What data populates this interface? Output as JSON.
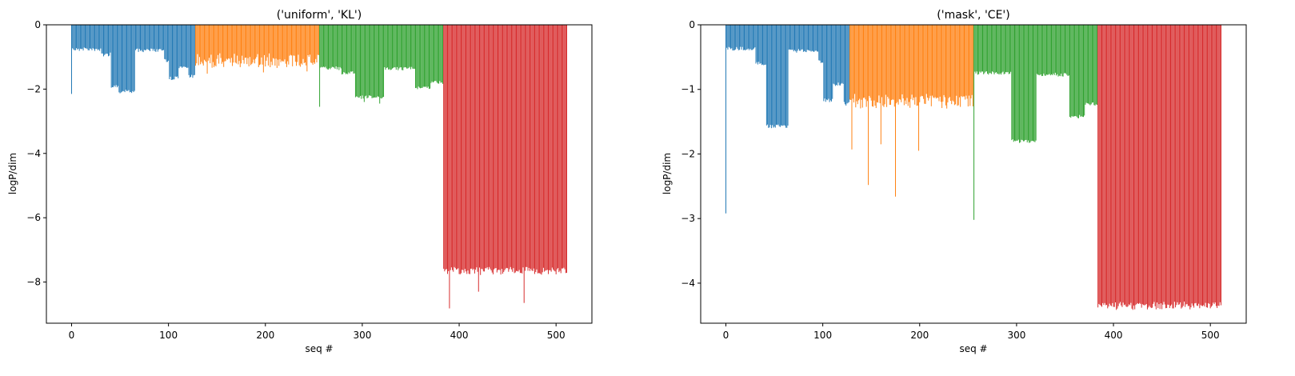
{
  "chart_data": [
    {
      "type": "bar",
      "title": "('uniform', 'KL')",
      "xlabel": "seq #",
      "ylabel": "logP/dim",
      "xlim": [
        -26,
        537
      ],
      "ylim": [
        -9.28,
        0
      ],
      "xticks": [
        0,
        100,
        200,
        300,
        400,
        500
      ],
      "yticks": [
        0,
        -2,
        -4,
        -6,
        -8
      ],
      "grid": false,
      "legend": "none",
      "n_bars": 512,
      "series": [
        {
          "color": "#1f77b4",
          "x_range": [
            0,
            127
          ],
          "segments": [
            {
              "x": [
                0,
                0
              ],
              "value": -2.15
            },
            {
              "x": [
                1,
                30
              ],
              "value": -0.72
            },
            {
              "x": [
                31,
                40
              ],
              "value": -0.88
            },
            {
              "x": [
                41,
                48
              ],
              "value": -1.88
            },
            {
              "x": [
                49,
                65
              ],
              "value": -2.02
            },
            {
              "x": [
                66,
                95
              ],
              "value": -0.75
            },
            {
              "x": [
                96,
                100
              ],
              "value": -1.05
            },
            {
              "x": [
                101,
                110
              ],
              "value": -1.62
            },
            {
              "x": [
                111,
                120
              ],
              "value": -1.25
            },
            {
              "x": [
                121,
                127
              ],
              "value": -1.55
            }
          ]
        },
        {
          "color": "#ff7f0e",
          "x_range": [
            128,
            255
          ],
          "segments": [
            {
              "x": [
                128,
                255
              ],
              "value": -0.95
            }
          ],
          "spikes": [
            {
              "x": 140,
              "value": -1.52
            },
            {
              "x": 198,
              "value": -1.48
            },
            {
              "x": 243,
              "value": -1.45
            }
          ]
        },
        {
          "color": "#2ca02c",
          "x_range": [
            256,
            383
          ],
          "segments": [
            {
              "x": [
                256,
                256
              ],
              "value": -2.55
            },
            {
              "x": [
                257,
                278
              ],
              "value": -1.3
            },
            {
              "x": [
                279,
                292
              ],
              "value": -1.45
            },
            {
              "x": [
                293,
                322
              ],
              "value": -2.2
            },
            {
              "x": [
                323,
                354
              ],
              "value": -1.32
            },
            {
              "x": [
                355,
                370
              ],
              "value": -1.9
            },
            {
              "x": [
                371,
                383
              ],
              "value": -1.75
            }
          ],
          "spikes": [
            {
              "x": 302,
              "value": -2.4
            },
            {
              "x": 318,
              "value": -2.45
            }
          ]
        },
        {
          "color": "#d62728",
          "x_range": [
            384,
            511
          ],
          "segments": [
            {
              "x": [
                384,
                511
              ],
              "value": -7.55
            }
          ],
          "spikes": [
            {
              "x": 390,
              "value": -8.82
            },
            {
              "x": 467,
              "value": -8.65
            },
            {
              "x": 420,
              "value": -8.3
            }
          ]
        }
      ]
    },
    {
      "type": "bar",
      "title": "('mask', 'CE')",
      "xlabel": "seq #",
      "ylabel": "logP/dim",
      "xlim": [
        -26,
        537
      ],
      "ylim": [
        -4.62,
        0
      ],
      "xticks": [
        0,
        100,
        200,
        300,
        400,
        500
      ],
      "yticks": [
        0,
        -1,
        -2,
        -3,
        -4
      ],
      "grid": false,
      "legend": "none",
      "n_bars": 512,
      "series": [
        {
          "color": "#1f77b4",
          "x_range": [
            0,
            127
          ],
          "segments": [
            {
              "x": [
                0,
                0
              ],
              "value": -2.92
            },
            {
              "x": [
                1,
                30
              ],
              "value": -0.35
            },
            {
              "x": [
                31,
                41
              ],
              "value": -0.58
            },
            {
              "x": [
                42,
                64
              ],
              "value": -1.55
            },
            {
              "x": [
                65,
                95
              ],
              "value": -0.38
            },
            {
              "x": [
                96,
                100
              ],
              "value": -0.55
            },
            {
              "x": [
                101,
                110
              ],
              "value": -1.15
            },
            {
              "x": [
                111,
                121
              ],
              "value": -0.9
            },
            {
              "x": [
                122,
                127
              ],
              "value": -1.2
            }
          ]
        },
        {
          "color": "#ff7f0e",
          "x_range": [
            128,
            255
          ],
          "segments": [
            {
              "x": [
                128,
                255
              ],
              "value": -1.1
            }
          ],
          "spikes": [
            {
              "x": 130,
              "value": -1.93
            },
            {
              "x": 147,
              "value": -2.48
            },
            {
              "x": 175,
              "value": -2.66
            },
            {
              "x": 199,
              "value": -1.95
            },
            {
              "x": 160,
              "value": -1.85
            }
          ]
        },
        {
          "color": "#2ca02c",
          "x_range": [
            256,
            383
          ],
          "segments": [
            {
              "x": [
                256,
                256
              ],
              "value": -3.02
            },
            {
              "x": [
                257,
                294
              ],
              "value": -0.72
            },
            {
              "x": [
                295,
                320
              ],
              "value": -1.78
            },
            {
              "x": [
                321,
                354
              ],
              "value": -0.75
            },
            {
              "x": [
                355,
                370
              ],
              "value": -1.4
            },
            {
              "x": [
                371,
                383
              ],
              "value": -1.2
            }
          ]
        },
        {
          "color": "#d62728",
          "x_range": [
            384,
            511
          ],
          "segments": [
            {
              "x": [
                384,
                511
              ],
              "value": -4.3
            }
          ],
          "spikes": [
            {
              "x": 448,
              "value": -4.4
            },
            {
              "x": 440,
              "value": -4.38
            }
          ]
        }
      ]
    }
  ]
}
